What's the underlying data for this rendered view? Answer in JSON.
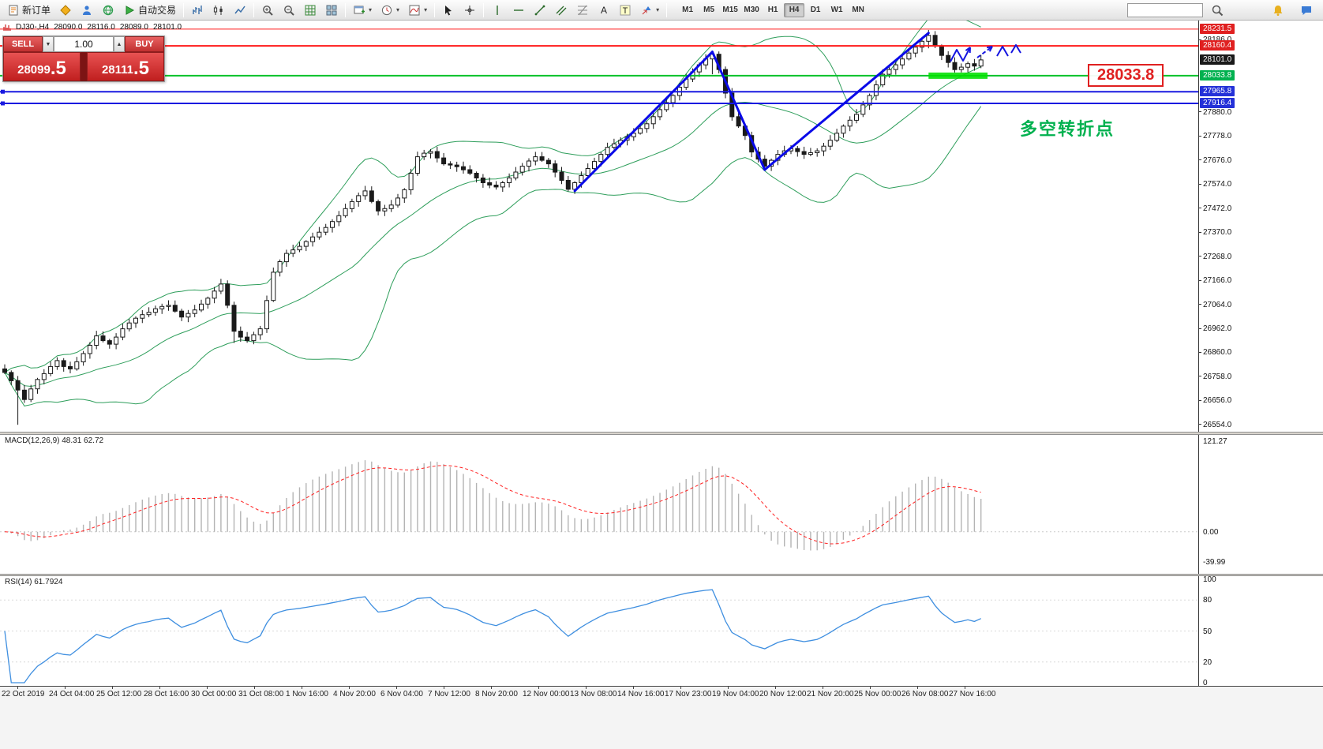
{
  "toolbar": {
    "items": [
      {
        "name": "new-order",
        "icon": "doc",
        "label": "新订单"
      },
      {
        "name": "market",
        "icon": "diamond"
      },
      {
        "name": "community",
        "icon": "person"
      },
      {
        "name": "webterminal",
        "icon": "globe"
      },
      {
        "name": "auto-trading",
        "icon": "play",
        "label": "自动交易"
      },
      {
        "sep": true
      },
      {
        "name": "bar-chart",
        "icon": "chart-bar"
      },
      {
        "name": "candlestick-chart",
        "icon": "chart-candle"
      },
      {
        "name": "line-chart",
        "icon": "chart-line"
      },
      {
        "sep": true
      },
      {
        "name": "zoom-in",
        "icon": "zoom-in"
      },
      {
        "name": "zoom-out",
        "icon": "zoom-out"
      },
      {
        "name": "data-window",
        "icon": "grid"
      },
      {
        "name": "tile-windows",
        "icon": "tile"
      },
      {
        "sep": true
      },
      {
        "name": "new-chart",
        "icon": "window-plus",
        "caret": true
      },
      {
        "name": "period",
        "icon": "clock",
        "caret": true
      },
      {
        "name": "indicators",
        "icon": "indicator",
        "caret": true
      },
      {
        "sep": true
      },
      {
        "name": "cursor",
        "icon": "cursor"
      },
      {
        "name": "crosshair",
        "icon": "crosshair"
      },
      {
        "sep": true
      },
      {
        "name": "vertical-line",
        "icon": "vline"
      },
      {
        "name": "horizontal-line",
        "icon": "hline"
      },
      {
        "name": "trendline",
        "icon": "trendline"
      },
      {
        "name": "equidistant-channel",
        "icon": "channel"
      },
      {
        "name": "fibonacci",
        "icon": "fibo"
      },
      {
        "name": "text",
        "icon": "text-a"
      },
      {
        "name": "text-label",
        "icon": "text-t"
      },
      {
        "name": "arrows",
        "icon": "arrow-tool",
        "caret": true
      },
      {
        "sep": true
      }
    ],
    "timeframes": [
      {
        "label": "M1"
      },
      {
        "label": "M5"
      },
      {
        "label": "M15"
      },
      {
        "label": "M30"
      },
      {
        "label": "H1"
      },
      {
        "label": "H4",
        "active": true
      },
      {
        "label": "D1"
      },
      {
        "label": "W1"
      },
      {
        "label": "MN"
      }
    ],
    "search_placeholder": "",
    "right_icons": [
      {
        "name": "notifications",
        "icon": "bell"
      },
      {
        "name": "chat",
        "icon": "chat"
      }
    ]
  },
  "chart_header": {
    "symbol": "DJ30-,H4",
    "open": "28090.0",
    "high": "28116.0",
    "low": "28089.0",
    "close": "28101.0"
  },
  "trade_panel": {
    "sell_label": "SELL",
    "buy_label": "BUY",
    "volume": "1.00",
    "sell_price": {
      "main": "28099",
      "pips": ".5"
    },
    "buy_price": {
      "main": "28111",
      "pips": ".5"
    }
  },
  "macd_panel": {
    "label": "MACD(12,26,9) 48.31 62.72",
    "scale_labels": [
      121.27,
      0.0,
      -39.99
    ]
  },
  "rsi_panel": {
    "label": "RSI(14) 61.7924",
    "scale_labels": [
      100,
      80,
      50,
      20,
      0
    ]
  },
  "annotations": {
    "price_callout": {
      "text": "28033.8",
      "color": "#e02020"
    },
    "note": {
      "text": "多空转折点",
      "color": "#00b14f"
    }
  },
  "chart_data": {
    "type": "candlestick",
    "symbol": "DJ30-",
    "timeframe": "H4",
    "ohlc_last": {
      "open": 28090.0,
      "high": 28116.0,
      "low": 28089.0,
      "close": 28101.0
    },
    "price_range_visible": [
      26531,
      28268
    ],
    "first_open": 26790,
    "closes": [
      26775,
      26740,
      26700,
      26660,
      26705,
      26745,
      26770,
      26800,
      26825,
      26800,
      26790,
      26820,
      26855,
      26890,
      26930,
      26910,
      26895,
      26925,
      26960,
      26985,
      27005,
      27020,
      27030,
      27045,
      27055,
      27060,
      27035,
      27010,
      27025,
      27040,
      27065,
      27090,
      27120,
      27150,
      27060,
      26950,
      26925,
      26910,
      26935,
      26960,
      27080,
      27200,
      27245,
      27280,
      27295,
      27310,
      27330,
      27350,
      27370,
      27390,
      27415,
      27440,
      27470,
      27500,
      27525,
      27545,
      27500,
      27460,
      27470,
      27485,
      27515,
      27550,
      27620,
      27690,
      27705,
      27712,
      27685,
      27660,
      27655,
      27648,
      27635,
      27620,
      27600,
      27580,
      27570,
      27562,
      27580,
      27600,
      27625,
      27650,
      27672,
      27690,
      27675,
      27660,
      27625,
      27590,
      27552,
      27580,
      27610,
      27640,
      27670,
      27700,
      27730,
      27745,
      27760,
      27775,
      27790,
      27810,
      27830,
      27860,
      27890,
      27920,
      27950,
      27985,
      28020,
      28050,
      28080,
      28105,
      28125,
      28060,
      27960,
      27860,
      27820,
      27780,
      27710,
      27680,
      27650,
      27675,
      27700,
      27715,
      27725,
      27712,
      27700,
      27707,
      27715,
      27735,
      27760,
      27790,
      27820,
      27845,
      27870,
      27910,
      27950,
      27995,
      28040,
      28060,
      28080,
      28105,
      28130,
      28155,
      28180,
      28205,
      28160,
      28120,
      28090,
      28060,
      28070,
      28085,
      28075,
      28101
    ],
    "wick_overrides": {
      "2": [
        26760,
        26553
      ],
      "35": [
        27075,
        26900
      ],
      "108": [
        28140,
        28040
      ],
      "141": [
        28228,
        28150
      ]
    },
    "indicators": {
      "bollinger": {
        "period": 20,
        "deviation": 2
      },
      "macd": {
        "fast": 12,
        "slow": 26,
        "signal": 9,
        "current": [
          48.31,
          62.72
        ]
      },
      "rsi": {
        "period": 14,
        "current": 61.7924
      }
    },
    "styles": {
      "candle_up": "#ffffff",
      "candle_down": "#1a1a1a",
      "wick": "#1a1a1a",
      "band": "#2e9e5b",
      "macd_hist": "#b4b4b4",
      "macd_signal": "#ff2020",
      "rsi_line": "#3f8fe0",
      "trend": "#0a0ae8",
      "sketch": "#1515e0"
    },
    "hlines": [
      {
        "price": 28231.5,
        "color": "#ff1a1a",
        "width": 1
      },
      {
        "price": 28160.4,
        "color": "#ff1a1a",
        "width": 2
      },
      {
        "price": 28033.8,
        "color": "#00c22a",
        "width": 2
      },
      {
        "price": 27965.8,
        "color": "#1a1ae0",
        "width": 2,
        "handles": true
      },
      {
        "price": 27916.4,
        "color": "#1a1ae0",
        "width": 2,
        "handles": true
      }
    ],
    "price_axis": {
      "plain_labels": [
        28186.0,
        27880.0,
        27778.0,
        27676.0,
        27574.0,
        27472.0,
        27370.0,
        27268.0,
        27166.0,
        27064.0,
        26962.0,
        26860.0,
        26758.0,
        26656.0,
        26554.0
      ],
      "markers": [
        {
          "price": 28231.5,
          "color": "#e02020",
          "text": "28231.5"
        },
        {
          "price": 28160.4,
          "color": "#e02020",
          "text": "28160.4"
        },
        {
          "price": 28101.0,
          "color": "#1a1a1a",
          "text": "28101.0"
        },
        {
          "price": 28033.8,
          "color": "#00b14f",
          "text": "28033.8"
        },
        {
          "price": 27965.8,
          "color": "#2431d8",
          "text": "27965.8"
        },
        {
          "price": 27916.4,
          "color": "#2431d8",
          "text": "27916.4"
        }
      ]
    },
    "trend_lines": [
      {
        "from": [
          87,
          27545
        ],
        "to": [
          108,
          28135
        ]
      },
      {
        "from": [
          108,
          28135
        ],
        "to": [
          116,
          27635
        ]
      },
      {
        "from": [
          116,
          27635
        ],
        "to": [
          141,
          28215
        ]
      }
    ],
    "support_zone": {
      "from_index": 141,
      "to_index": 150,
      "price": 28034,
      "color": "#00e000"
    },
    "sketches": [
      {
        "points": [
          [
            1204,
            52
          ],
          [
            1212,
            37
          ],
          [
            1220,
            51
          ],
          [
            1229,
            34
          ]
        ],
        "arrow": true
      },
      {
        "points": [
          [
            1238,
            47
          ],
          [
            1257,
            33
          ]
        ],
        "arrow": true,
        "dashed": true
      },
      {
        "points": [
          [
            1263,
            45
          ],
          [
            1270,
            33
          ],
          [
            1277,
            45
          ]
        ]
      },
      {
        "points": [
          [
            1281,
            41
          ],
          [
            1287,
            31
          ],
          [
            1293,
            41
          ]
        ]
      }
    ],
    "time_labels": [
      "22 Oct 2019",
      "24 Oct 04:00",
      "25 Oct 12:00",
      "28 Oct 16:00",
      "30 Oct 00:00",
      "31 Oct 08:00",
      "1 Nov 16:00",
      "4 Nov 20:00",
      "6 Nov 04:00",
      "7 Nov 12:00",
      "8 Nov 20:00",
      "12 Nov 00:00",
      "13 Nov 08:00",
      "14 Nov 16:00",
      "17 Nov 23:00",
      "19 Nov 04:00",
      "20 Nov 12:00",
      "21 Nov 20:00",
      "25 Nov 00:00",
      "26 Nov 08:00",
      "27 Nov 16:00"
    ]
  }
}
